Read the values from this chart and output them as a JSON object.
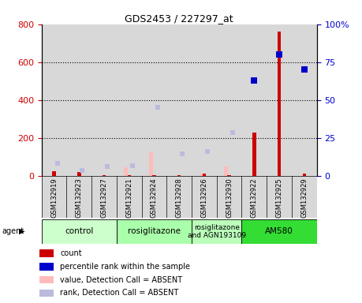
{
  "title": "GDS2453 / 227297_at",
  "samples": [
    "GSM132919",
    "GSM132923",
    "GSM132927",
    "GSM132921",
    "GSM132924",
    "GSM132928",
    "GSM132926",
    "GSM132930",
    "GSM132922",
    "GSM132925",
    "GSM132929"
  ],
  "groups": [
    {
      "label": "control",
      "color": "#ccffcc",
      "start": 0,
      "end": 3
    },
    {
      "label": "rosiglitazone",
      "color": "#aaffaa",
      "start": 3,
      "end": 6
    },
    {
      "label": "rosiglitazone\nand AGN193109",
      "color": "#bbffbb",
      "start": 6,
      "end": 8
    },
    {
      "label": "AM580",
      "color": "#33dd33",
      "start": 8,
      "end": 11
    }
  ],
  "count_values": [
    22,
    20,
    5,
    5,
    5,
    5,
    12,
    5,
    230,
    760,
    10
  ],
  "value_values": [
    0,
    0,
    0,
    45,
    125,
    0,
    10,
    50,
    0,
    0,
    0
  ],
  "rank_values": [
    65,
    30,
    47,
    52,
    360,
    115,
    130,
    230,
    0,
    0,
    0
  ],
  "percentile_values": [
    0,
    0,
    0,
    0,
    0,
    0,
    0,
    0,
    63,
    80,
    70
  ],
  "value_is_absent": [
    true,
    true,
    true,
    true,
    true,
    true,
    true,
    true,
    false,
    false,
    false
  ],
  "rank_is_absent": [
    true,
    true,
    true,
    true,
    true,
    true,
    true,
    true,
    false,
    false,
    false
  ],
  "count_is_absent": [
    false,
    false,
    false,
    false,
    false,
    false,
    false,
    false,
    false,
    false,
    false
  ],
  "ylim_left": [
    0,
    800
  ],
  "ylim_right": [
    0,
    100
  ],
  "yticks_left": [
    0,
    200,
    400,
    600,
    800
  ],
  "yticks_right": [
    0,
    25,
    50,
    75,
    100
  ],
  "count_color": "#cc0000",
  "percentile_color": "#0000cc",
  "value_absent_color": "#ffbbbb",
  "rank_absent_color": "#bbbbdd",
  "bar_bg_color": "#d8d8d8",
  "bg_color": "#ffffff",
  "legend_items": [
    {
      "color": "#cc0000",
      "label": "count"
    },
    {
      "color": "#0000cc",
      "label": "percentile rank within the sample"
    },
    {
      "color": "#ffbbbb",
      "label": "value, Detection Call = ABSENT"
    },
    {
      "color": "#bbbbdd",
      "label": "rank, Detection Call = ABSENT"
    }
  ]
}
